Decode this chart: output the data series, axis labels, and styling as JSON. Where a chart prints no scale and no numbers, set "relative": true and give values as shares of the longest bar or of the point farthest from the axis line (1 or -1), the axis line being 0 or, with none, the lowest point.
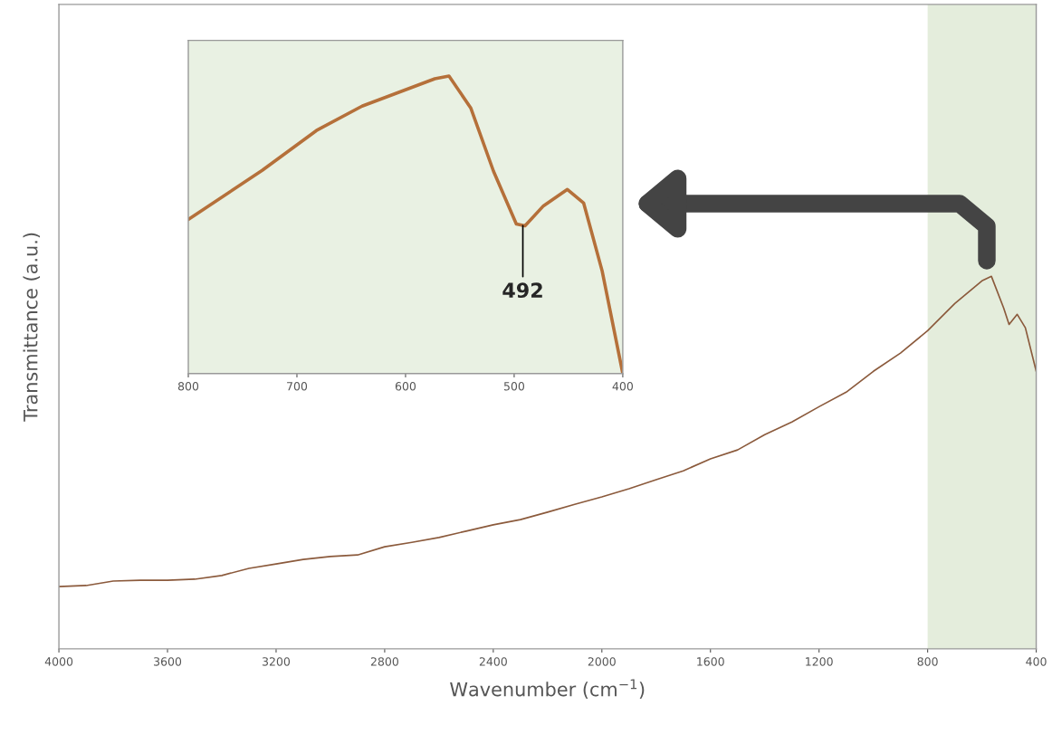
{
  "chart_data": [
    {
      "type": "line",
      "xlabel": "Wavenumber (cm$^{−1}$)",
      "ylabel": "Transmittance (a.u.)",
      "relative": true,
      "xlim": [
        4000,
        400
      ],
      "xticks": [
        4000,
        3600,
        3200,
        2800,
        2400,
        2000,
        1600,
        1200,
        800,
        400
      ],
      "grid": false,
      "legend": false,
      "bands": [
        {
          "axis": "x",
          "from": 800,
          "to": 400,
          "color": "#e4eddc"
        }
      ],
      "series": [
        {
          "color": "#8b5a3c",
          "x": [
            4000,
            3900,
            3800,
            3700,
            3600,
            3500,
            3400,
            3300,
            3200,
            3100,
            3000,
            2900,
            2800,
            2700,
            2600,
            2500,
            2400,
            2300,
            2200,
            2100,
            2000,
            1900,
            1800,
            1700,
            1600,
            1500,
            1400,
            1300,
            1200,
            1100,
            1000,
            900,
            800,
            700,
            600,
            565,
            520,
            500,
            470,
            440,
            400
          ],
          "values": [
            0.167,
            0.17,
            0.182,
            0.184,
            0.184,
            0.187,
            0.197,
            0.216,
            0.228,
            0.24,
            0.248,
            0.252,
            0.274,
            0.286,
            0.299,
            0.316,
            0.333,
            0.347,
            0.367,
            0.388,
            0.408,
            0.43,
            0.454,
            0.478,
            0.51,
            0.534,
            0.575,
            0.609,
            0.65,
            0.689,
            0.745,
            0.794,
            0.854,
            0.927,
            0.988,
            1.0,
            0.915,
            0.871,
            0.898,
            0.862,
            0.745
          ]
        }
      ]
    },
    {
      "type": "line",
      "xlim": [
        800,
        400
      ],
      "xticks": [
        800,
        700,
        600,
        500,
        400
      ],
      "relative": true,
      "grid": false,
      "legend": false,
      "bands": [
        {
          "axis": "x",
          "from": 800,
          "to": 400,
          "color": "#e9f1e3"
        }
      ],
      "annotations": [
        {
          "text": "492",
          "x": 492,
          "y": 0.497
        }
      ],
      "series": [
        {
          "color": "#b5703a",
          "x": [
            800,
            732,
            682,
            640,
            573,
            560,
            540,
            519,
            498,
            490,
            473,
            451,
            436,
            419,
            400
          ],
          "values": [
            0.518,
            0.683,
            0.817,
            0.899,
            0.991,
            1.0,
            0.893,
            0.68,
            0.503,
            0.497,
            0.564,
            0.619,
            0.573,
            0.345,
            0.0
          ]
        }
      ]
    }
  ]
}
